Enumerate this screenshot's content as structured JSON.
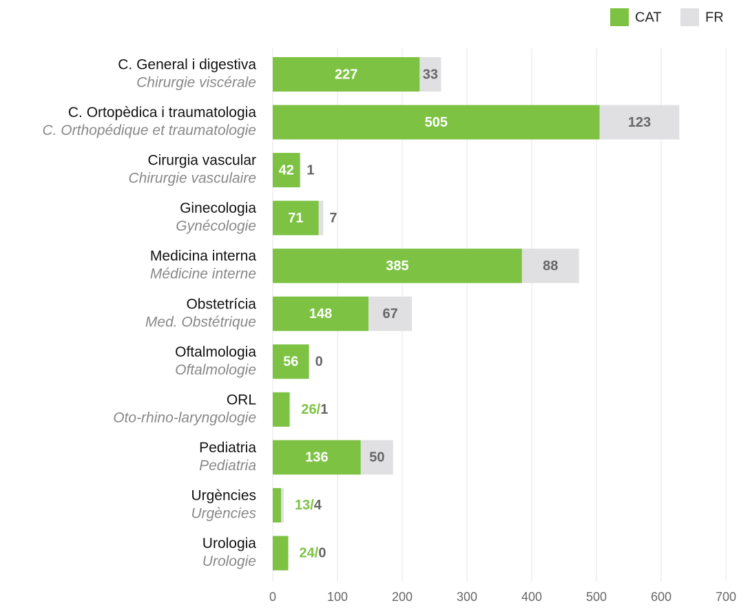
{
  "chart_data": {
    "type": "stacked_barh",
    "categories": [
      "C. General i digestiva",
      "C. Ortopèdica i traumatologia",
      "Cirurgia vascular",
      "Ginecologia",
      "Medicina interna",
      "Obstetrícia",
      "Oftalmologia",
      "ORL",
      "Pediatria",
      "Urgències",
      "Urologia"
    ],
    "categories_fr": [
      "Chirurgie viscérale",
      "C. Orthopédique et traumatologie",
      "Chirurgie vasculaire",
      "Gynécologie",
      "Médicine interne",
      "Med. Obstétrique",
      "Oftalmologie",
      "Oto-rhino-laryngologie",
      "Pediatria",
      "Urgències",
      "Urologie"
    ],
    "series": [
      {
        "name": "CAT",
        "color": "#7dc243",
        "values": [
          227,
          505,
          42,
          71,
          385,
          148,
          56,
          26,
          136,
          13,
          24
        ],
        "value_labels": [
          "227",
          "505",
          "42",
          "71",
          "385",
          "148",
          "56",
          "26/",
          "136",
          "13/",
          "24/"
        ]
      },
      {
        "name": "FR",
        "color": "#e0e0e2",
        "values": [
          33,
          123,
          1,
          7,
          88,
          67,
          0,
          1,
          50,
          4,
          0
        ]
      }
    ],
    "xlim": [
      0,
      700
    ],
    "xticks": [
      0,
      100,
      200,
      300,
      400,
      500,
      600,
      700
    ],
    "grid": true,
    "legend": "top-right"
  }
}
